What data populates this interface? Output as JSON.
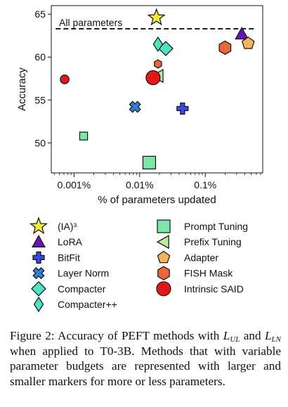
{
  "chart_data": {
    "type": "scatter",
    "xlabel": "% of parameters updated",
    "ylabel": "Accuracy",
    "xscale": "log",
    "x_ticks": [
      {
        "value": 0.001,
        "label": "0.001%"
      },
      {
        "value": 0.01,
        "label": "0.01%"
      },
      {
        "value": 0.1,
        "label": "0.1%"
      }
    ],
    "y_ticks": [
      50,
      55,
      60,
      65
    ],
    "ylim": [
      46.5,
      66
    ],
    "xlim": [
      0.00045,
      0.75
    ],
    "reference_line": {
      "label": "All parameters",
      "y": 63.3,
      "style": "dashed"
    },
    "series": [
      {
        "name": "(IA)³",
        "marker": "star",
        "color": "#f2ea3a",
        "points": [
          {
            "x": 0.018,
            "y": 64.6,
            "size": 1.0
          }
        ]
      },
      {
        "name": "LoRA",
        "marker": "triangle-up",
        "color": "#6a14b8",
        "points": [
          {
            "x": 0.36,
            "y": 62.7,
            "size": 1.0
          }
        ]
      },
      {
        "name": "BitFit",
        "marker": "plus",
        "color": "#3a49e0",
        "points": [
          {
            "x": 0.045,
            "y": 54.0,
            "size": 1.0
          }
        ]
      },
      {
        "name": "Layer Norm",
        "marker": "x",
        "color": "#2f7fd6",
        "points": [
          {
            "x": 0.0085,
            "y": 54.2,
            "size": 1.0
          }
        ]
      },
      {
        "name": "Compacter",
        "marker": "diamond",
        "color": "#4fe3c4",
        "points": [
          {
            "x": 0.025,
            "y": 61.0,
            "size": 1.0
          }
        ]
      },
      {
        "name": "Compacter++",
        "marker": "thin-diamond",
        "color": "#4fe3c4",
        "points": [
          {
            "x": 0.019,
            "y": 61.5,
            "size": 1.0
          }
        ]
      },
      {
        "name": "Prompt Tuning",
        "marker": "square",
        "color": "#7ce8a8",
        "points": [
          {
            "x": 0.0014,
            "y": 50.8,
            "size": 0.55
          },
          {
            "x": 0.014,
            "y": 47.7,
            "size": 1.0
          }
        ]
      },
      {
        "name": "Prefix Tuning",
        "marker": "triangle-left",
        "color": "#b9ec9c",
        "points": [
          {
            "x": 0.019,
            "y": 57.8,
            "size": 1.0
          }
        ]
      },
      {
        "name": "Adapter",
        "marker": "pentagon",
        "color": "#f5b35c",
        "points": [
          {
            "x": 0.45,
            "y": 61.6,
            "size": 1.0
          }
        ]
      },
      {
        "name": "FISH Mask",
        "marker": "hexagon",
        "color": "#e8673a",
        "points": [
          {
            "x": 0.019,
            "y": 59.2,
            "size": 0.55
          },
          {
            "x": 0.2,
            "y": 61.1,
            "size": 1.0
          }
        ]
      },
      {
        "name": "Intrinsic SAID",
        "marker": "circle",
        "color": "#e21818",
        "points": [
          {
            "x": 0.00072,
            "y": 57.4,
            "size": 0.55
          },
          {
            "x": 0.016,
            "y": 57.6,
            "size": 1.0
          }
        ]
      }
    ],
    "legend": {
      "placement": "bottom",
      "columns": 2
    }
  },
  "caption": {
    "prefix": "Figure 2: Accuracy of PEFT methods with ",
    "sym1_base": "L",
    "sym1_sub": "UL",
    "and_word": "and",
    "sym2_base": "L",
    "sym2_sub": "LN",
    "rest": " when applied to T0-3B. Methods that with variable parameter budgets are represented with larger and smaller markers for more or less parameters."
  }
}
